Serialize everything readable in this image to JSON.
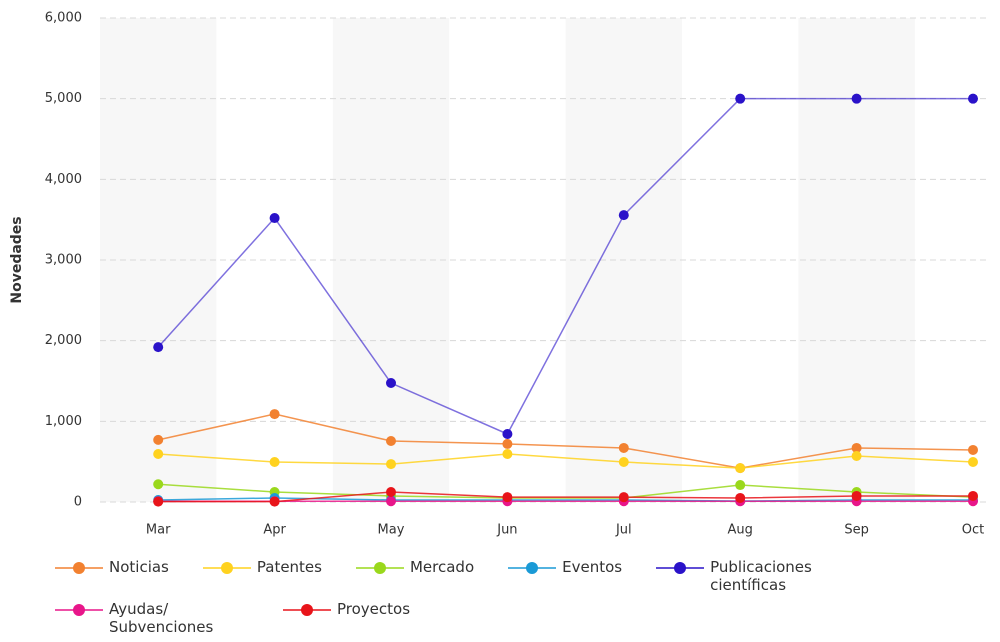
{
  "chart_data": {
    "type": "line",
    "y_label": "Novedades",
    "categories": [
      "Mar",
      "Apr",
      "May",
      "Jun",
      "Jul",
      "Aug",
      "Sep",
      "Oct"
    ],
    "series": [
      {
        "name": "Noticias",
        "color": "#f28130",
        "values": [
          770,
          1090,
          756,
          720,
          670,
          420,
          670,
          645
        ]
      },
      {
        "name": "Patentes",
        "color": "#ffd21f",
        "values": [
          595,
          496,
          470,
          595,
          496,
          420,
          570,
          496
        ]
      },
      {
        "name": "Mercado",
        "color": "#9ad81c",
        "values": [
          220,
          124,
          75,
          50,
          50,
          210,
          124,
          60
        ]
      },
      {
        "name": "Eventos",
        "color": "#1a9ad6",
        "values": [
          25,
          50,
          25,
          25,
          25,
          12,
          25,
          25
        ]
      },
      {
        "name": "Publicaciones científicas",
        "color": "#2a12c9",
        "values": [
          1920,
          3520,
          1475,
          843,
          3556,
          5000,
          5000,
          5000
        ]
      },
      {
        "name": "Ayudas/ Subvenciones",
        "color": "#e8168a",
        "values": [
          10,
          10,
          10,
          10,
          10,
          10,
          10,
          10
        ]
      },
      {
        "name": "Proyectos",
        "color": "#e8141a",
        "values": [
          5,
          5,
          124,
          60,
          60,
          50,
          75,
          75
        ]
      }
    ],
    "ylim": [
      0,
      6000
    ],
    "yticks": [
      0,
      {
        "value": 1000,
        "label": "1,000"
      },
      {
        "value": 2000,
        "label": "2,000"
      },
      {
        "value": 3000,
        "label": "3,000"
      },
      {
        "value": 4000,
        "label": "4,000"
      },
      {
        "value": 5000,
        "label": "5,000"
      },
      {
        "value": 6000,
        "label": "6,000"
      }
    ],
    "grid": true,
    "alternate_bands": true
  }
}
